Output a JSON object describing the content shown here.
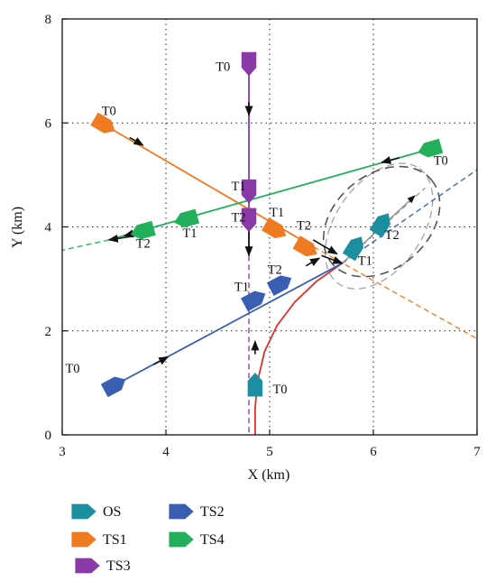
{
  "chart_data": {
    "type": "line",
    "title": "",
    "xlabel": "X (km)",
    "ylabel": "Y (km)",
    "xlim": [
      3,
      7
    ],
    "ylim": [
      0,
      8
    ],
    "xticks": [
      "3",
      "4",
      "5",
      "6",
      "7"
    ],
    "yticks": [
      "0",
      "2",
      "4",
      "6",
      "8"
    ],
    "grid": true,
    "legend_position": "bottom-left",
    "colors": {
      "OS": "#1b8fa0",
      "TS1": "#f07a22",
      "TS2": "#3a5fb2",
      "TS3": "#8a3aa6",
      "TS4": "#22b05a",
      "os_path": "#e0302a"
    },
    "legend": [
      "OS",
      "TS1",
      "TS3",
      "TS2",
      "TS4"
    ],
    "series": [
      {
        "name": "OS",
        "path": [
          [
            4.86,
            0.0
          ],
          [
            4.86,
            0.5
          ],
          [
            4.88,
            1.0
          ],
          [
            4.95,
            1.6
          ],
          [
            5.07,
            2.1
          ],
          [
            5.24,
            2.55
          ],
          [
            5.45,
            2.95
          ],
          [
            5.7,
            3.3
          ]
        ],
        "extension": [
          [
            5.7,
            3.3
          ],
          [
            6.5,
            4.75
          ]
        ],
        "markers": [
          {
            "label": "T0",
            "x": 4.86,
            "y": 0.95
          },
          {
            "label": "T1",
            "x": 5.82,
            "y": 3.6
          },
          {
            "label": "T2",
            "x": 6.08,
            "y": 4.05
          }
        ]
      },
      {
        "name": "TS1",
        "path": [
          [
            3.4,
            5.97
          ],
          [
            5.35,
            3.7
          ]
        ],
        "extension": [
          [
            5.35,
            3.7
          ],
          [
            7.0,
            1.85
          ]
        ],
        "markers": [
          {
            "label": "T0",
            "x": 3.4,
            "y": 5.97
          },
          {
            "label": "T1",
            "x": 5.05,
            "y": 3.95
          },
          {
            "label": "T2",
            "x": 5.35,
            "y": 3.6
          }
        ]
      },
      {
        "name": "TS2",
        "path": [
          [
            3.5,
            0.95
          ],
          [
            5.7,
            3.3
          ]
        ],
        "extension": [
          [
            5.7,
            3.3
          ],
          [
            7.0,
            5.1
          ]
        ],
        "markers": [
          {
            "label": "T0",
            "x": 3.5,
            "y": 0.95
          },
          {
            "label": "T1",
            "x": 4.85,
            "y": 2.6
          },
          {
            "label": "T2",
            "x": 5.1,
            "y": 2.9
          }
        ]
      },
      {
        "name": "TS3",
        "path": [
          [
            4.8,
            7.15
          ],
          [
            4.8,
            3.45
          ]
        ],
        "extension": [
          [
            4.8,
            3.45
          ],
          [
            4.8,
            0.0
          ]
        ],
        "markers": [
          {
            "label": "T0",
            "x": 4.8,
            "y": 7.15
          },
          {
            "label": "T1",
            "x": 4.8,
            "y": 4.7
          },
          {
            "label": "T2",
            "x": 4.8,
            "y": 4.15
          }
        ]
      },
      {
        "name": "TS4",
        "path": [
          [
            6.55,
            5.5
          ],
          [
            3.45,
            3.75
          ]
        ],
        "extension": [
          [
            3.45,
            3.75
          ],
          [
            3.0,
            3.55
          ]
        ],
        "markers": [
          {
            "label": "T0",
            "x": 6.55,
            "y": 5.5
          },
          {
            "label": "T1",
            "x": 4.2,
            "y": 4.15
          },
          {
            "label": "T2",
            "x": 3.78,
            "y": 3.92
          }
        ]
      }
    ],
    "annotations": [
      {
        "text": "T0",
        "x": 3.45,
        "y": 6.15
      },
      {
        "text": "T0",
        "x": 3.1,
        "y": 1.2
      },
      {
        "text": "T0",
        "x": 4.55,
        "y": 7.0
      },
      {
        "text": "T0",
        "x": 5.1,
        "y": 0.8
      },
      {
        "text": "T0",
        "x": 6.65,
        "y": 5.2
      },
      {
        "text": "T1",
        "x": 4.7,
        "y": 4.7
      },
      {
        "text": "T2",
        "x": 4.7,
        "y": 4.1
      },
      {
        "text": "T1",
        "x": 5.07,
        "y": 4.2
      },
      {
        "text": "T2",
        "x": 5.33,
        "y": 3.95
      },
      {
        "text": "T1",
        "x": 4.73,
        "y": 2.77
      },
      {
        "text": "T2",
        "x": 5.05,
        "y": 3.1
      },
      {
        "text": "T1",
        "x": 4.23,
        "y": 3.8
      },
      {
        "text": "T2",
        "x": 3.78,
        "y": 3.6
      },
      {
        "text": "T1",
        "x": 5.92,
        "y": 3.27
      },
      {
        "text": "T2",
        "x": 6.18,
        "y": 3.77
      }
    ]
  }
}
